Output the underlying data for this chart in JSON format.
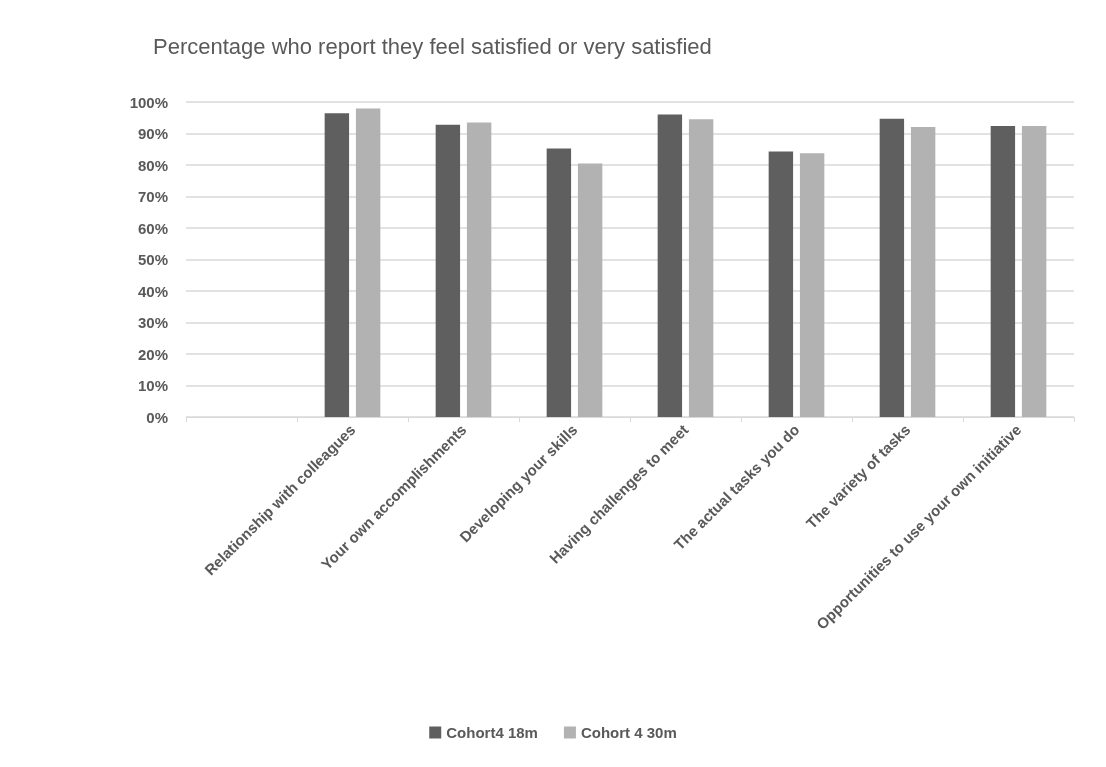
{
  "chart_data": {
    "type": "bar",
    "title": "Percentage who report they feel satisfied or very satisfied",
    "categories": [
      null,
      "Relationship with colleagues",
      "Your own accomplishments",
      "Developing your skills",
      "Having challenges to meet",
      "The actual tasks you do",
      "The variety of tasks",
      "Opportunities to use your own initiative"
    ],
    "series": [
      {
        "name": "Cohort4 18m",
        "color": "#5f5f5f",
        "values": [
          null,
          96.4,
          92.8,
          85.2,
          96.0,
          84.3,
          94.7,
          92.4
        ]
      },
      {
        "name": "Cohort 4 30m",
        "color": "#b2b2b2",
        "values": [
          null,
          97.9,
          93.5,
          80.5,
          94.5,
          83.7,
          92.1,
          92.4
        ]
      }
    ],
    "ylim": [
      0,
      100
    ],
    "yticks": [
      {
        "value": 0,
        "label": "0%"
      },
      {
        "value": 10,
        "label": "10%"
      },
      {
        "value": 20,
        "label": "20%"
      },
      {
        "value": 30,
        "label": "30%"
      },
      {
        "value": 40,
        "label": "40%"
      },
      {
        "value": 50,
        "label": "50%"
      },
      {
        "value": 60,
        "label": "60%"
      },
      {
        "value": 70,
        "label": "70%"
      },
      {
        "value": 80,
        "label": "80%"
      },
      {
        "value": 90,
        "label": "90%"
      },
      {
        "value": 100,
        "label": "100%"
      }
    ],
    "grid": "y",
    "legend": "bottom"
  }
}
